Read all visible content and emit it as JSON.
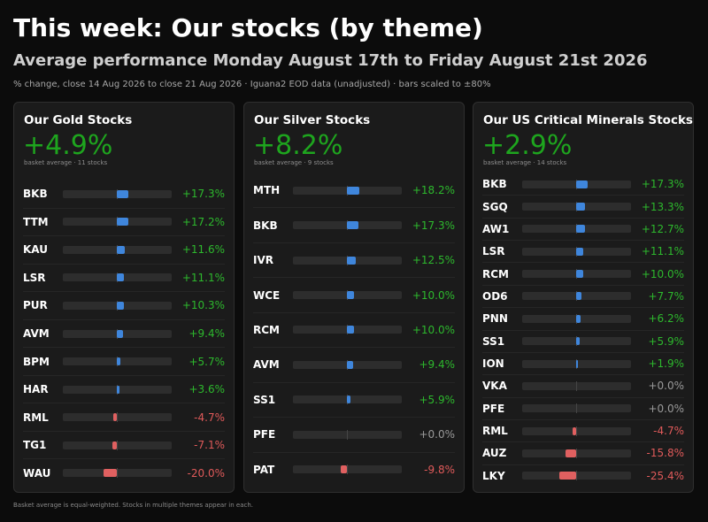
{
  "header": {
    "title": "This week: Our stocks (by theme)",
    "subtitle": "Average performance Monday August 17th to Friday August 21st 2026",
    "note": "% change, close 14 Aug 2026 to close 21 Aug 2026 · Iguana2 EOD data (unadjusted) · bars scaled to ±80%"
  },
  "footnote": "Basket average is equal-weighted. Stocks in multiple themes appear in each.",
  "scale_max_pct": 80,
  "colors": {
    "positive_text": "#2db82d",
    "negative_text": "#e05a5a",
    "neutral_text": "#9a9a9a",
    "positive_bar": "#3f86dc",
    "negative_bar": "#e06060",
    "average": "#1ea51e"
  },
  "panels": [
    {
      "title": "Our Gold Stocks",
      "average": "+4.9%",
      "meta": "basket average · 11 stocks",
      "stocks": [
        {
          "ticker": "BKB",
          "change": "+17.3%",
          "value": 17.3
        },
        {
          "ticker": "TTM",
          "change": "+17.2%",
          "value": 17.2
        },
        {
          "ticker": "KAU",
          "change": "+11.6%",
          "value": 11.6
        },
        {
          "ticker": "LSR",
          "change": "+11.1%",
          "value": 11.1
        },
        {
          "ticker": "PUR",
          "change": "+10.3%",
          "value": 10.3
        },
        {
          "ticker": "AVM",
          "change": "+9.4%",
          "value": 9.4
        },
        {
          "ticker": "BPM",
          "change": "+5.7%",
          "value": 5.7
        },
        {
          "ticker": "HAR",
          "change": "+3.6%",
          "value": 3.6
        },
        {
          "ticker": "RML",
          "change": "-4.7%",
          "value": -4.7
        },
        {
          "ticker": "TG1",
          "change": "-7.1%",
          "value": -7.1
        },
        {
          "ticker": "WAU",
          "change": "-20.0%",
          "value": -20.0
        }
      ]
    },
    {
      "title": "Our Silver Stocks",
      "average": "+8.2%",
      "meta": "basket average · 9 stocks",
      "stocks": [
        {
          "ticker": "MTH",
          "change": "+18.2%",
          "value": 18.2
        },
        {
          "ticker": "BKB",
          "change": "+17.3%",
          "value": 17.3
        },
        {
          "ticker": "IVR",
          "change": "+12.5%",
          "value": 12.5
        },
        {
          "ticker": "WCE",
          "change": "+10.0%",
          "value": 10.0
        },
        {
          "ticker": "RCM",
          "change": "+10.0%",
          "value": 10.0
        },
        {
          "ticker": "AVM",
          "change": "+9.4%",
          "value": 9.4
        },
        {
          "ticker": "SS1",
          "change": "+5.9%",
          "value": 5.9
        },
        {
          "ticker": "PFE",
          "change": "+0.0%",
          "value": 0.0
        },
        {
          "ticker": "PAT",
          "change": "-9.8%",
          "value": -9.8
        }
      ]
    },
    {
      "title": "Our US Critical Minerals Stocks",
      "average": "+2.9%",
      "meta": "basket average · 14 stocks",
      "stocks": [
        {
          "ticker": "BKB",
          "change": "+17.3%",
          "value": 17.3
        },
        {
          "ticker": "SGQ",
          "change": "+13.3%",
          "value": 13.3
        },
        {
          "ticker": "AW1",
          "change": "+12.7%",
          "value": 12.7
        },
        {
          "ticker": "LSR",
          "change": "+11.1%",
          "value": 11.1
        },
        {
          "ticker": "RCM",
          "change": "+10.0%",
          "value": 10.0
        },
        {
          "ticker": "OD6",
          "change": "+7.7%",
          "value": 7.7
        },
        {
          "ticker": "PNN",
          "change": "+6.2%",
          "value": 6.2
        },
        {
          "ticker": "SS1",
          "change": "+5.9%",
          "value": 5.9
        },
        {
          "ticker": "ION",
          "change": "+1.9%",
          "value": 1.9
        },
        {
          "ticker": "VKA",
          "change": "+0.0%",
          "value": 0.0
        },
        {
          "ticker": "PFE",
          "change": "+0.0%",
          "value": 0.0
        },
        {
          "ticker": "RML",
          "change": "-4.7%",
          "value": -4.7
        },
        {
          "ticker": "AUZ",
          "change": "-15.8%",
          "value": -15.8
        },
        {
          "ticker": "LKY",
          "change": "-25.4%",
          "value": -25.4
        }
      ]
    }
  ]
}
